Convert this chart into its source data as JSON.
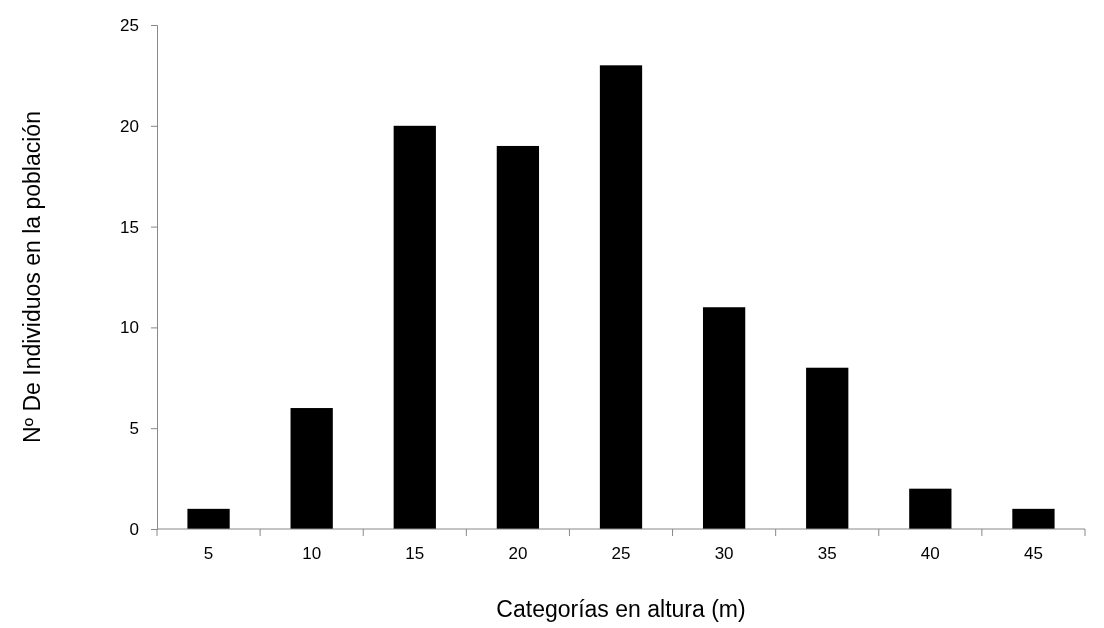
{
  "chart_data": {
    "type": "bar",
    "xlabel": "Categorías en altura (m)",
    "ylabel": "Nº De Individuos en la población",
    "categories": [
      "5",
      "10",
      "15",
      "20",
      "25",
      "30",
      "35",
      "40",
      "45"
    ],
    "series": [
      {
        "color": "#000000",
        "values": [
          1,
          6,
          20,
          19,
          23,
          11,
          8,
          2,
          1
        ]
      }
    ],
    "ylim": [
      0,
      25
    ],
    "yticks": [
      0,
      5,
      10,
      15,
      20,
      25
    ],
    "grid": false
  }
}
